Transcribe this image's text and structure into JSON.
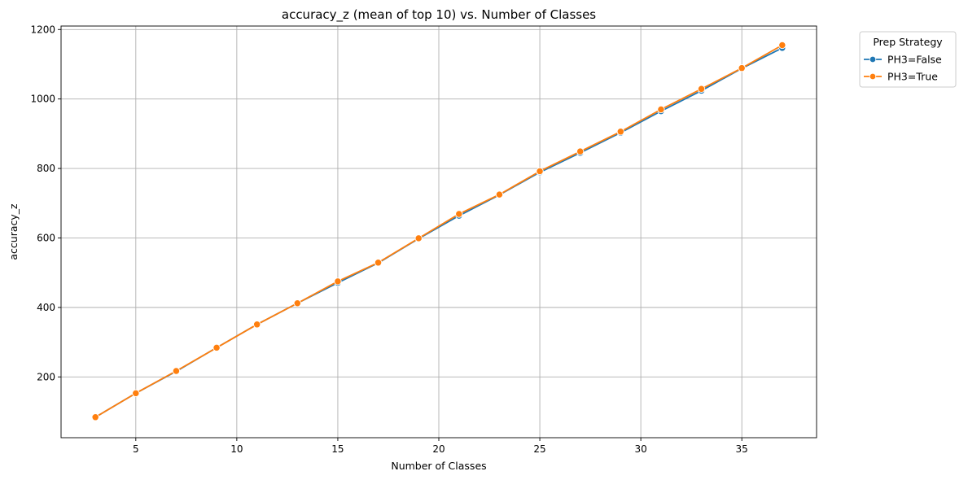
{
  "chart_data": {
    "type": "line",
    "title": "accuracy_z (mean of top 10) vs. Number of Classes",
    "xlabel": "Number of Classes",
    "ylabel": "accuracy_z",
    "xlim": [
      1.3,
      38.7
    ],
    "ylim": [
      25,
      1210
    ],
    "xticks": [
      5,
      10,
      15,
      20,
      25,
      30,
      35
    ],
    "yticks": [
      200,
      400,
      600,
      800,
      1000,
      1200
    ],
    "grid": true,
    "legend": {
      "title": "Prep Strategy",
      "placement": "outside-top-right"
    },
    "x": [
      3,
      5,
      7,
      9,
      11,
      13,
      15,
      17,
      19,
      21,
      23,
      25,
      27,
      29,
      31,
      33,
      35,
      37
    ],
    "series": [
      {
        "name": "PH3=False",
        "color": "#1f77b4",
        "values": [
          84,
          153,
          216,
          284,
          351,
          412,
          471,
          528,
          598,
          664,
          724,
          789,
          845,
          903,
          965,
          1024,
          1088,
          1147
        ]
      },
      {
        "name": "PH3=True",
        "color": "#ff7f0e",
        "values": [
          84,
          153,
          217,
          284,
          351,
          412,
          475,
          529,
          599,
          669,
          725,
          792,
          849,
          906,
          970,
          1029,
          1089,
          1155
        ]
      }
    ]
  }
}
